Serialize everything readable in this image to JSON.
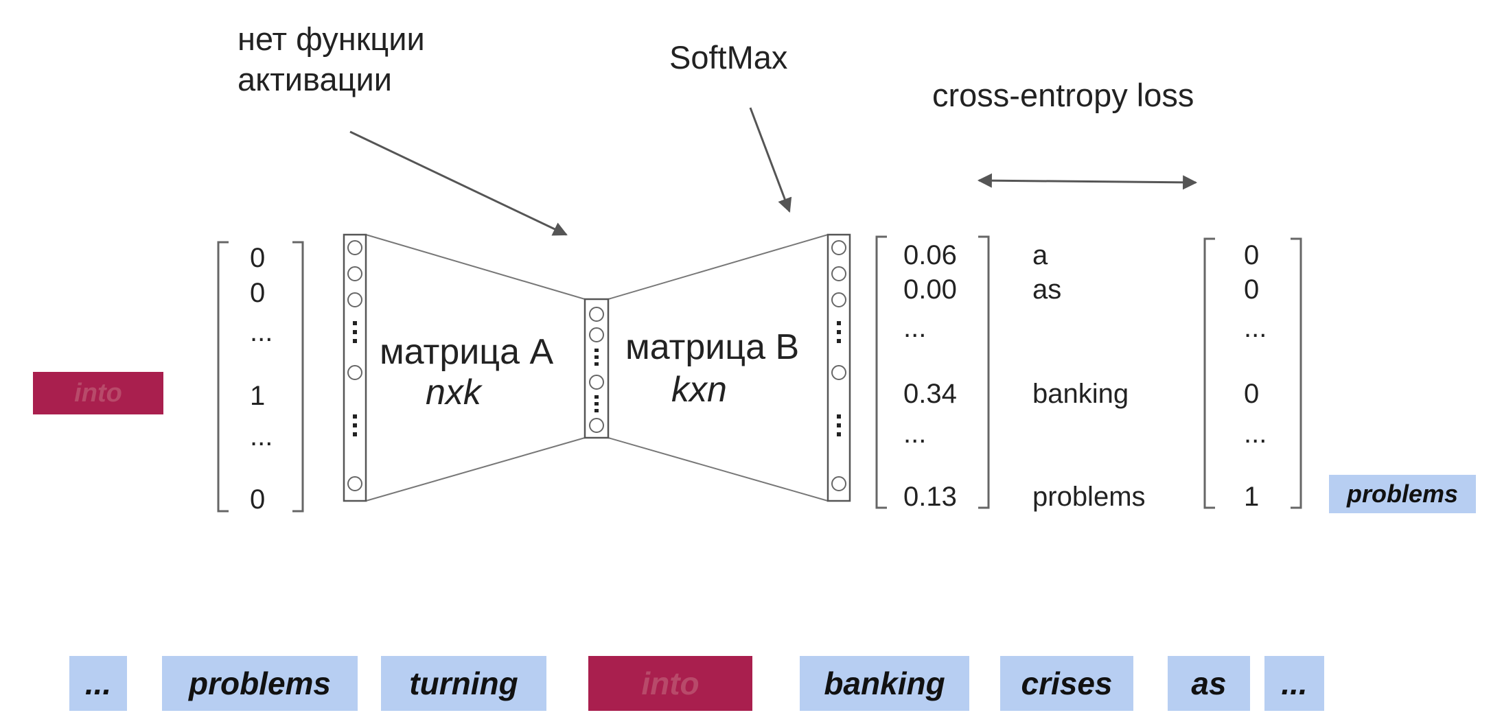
{
  "annotations": {
    "no_activation": "нет функции\nактивации",
    "softmax": "SoftMax",
    "cross_entropy": "cross-entropy loss"
  },
  "matrix_a": {
    "label": "матрица A",
    "dims": "nxk"
  },
  "matrix_b": {
    "label": "матрица B",
    "dims": "kxn"
  },
  "input_word": "into",
  "input_vector": [
    "0",
    "0",
    "...",
    "1",
    "...",
    "0"
  ],
  "output_probs": [
    "0.06",
    "0.00",
    "...",
    "0.34",
    "...",
    "0.13"
  ],
  "vocab_words": [
    "a",
    "as",
    "",
    "banking",
    "",
    "problems"
  ],
  "target_vector": [
    "0",
    "0",
    "...",
    "0",
    "...",
    "1"
  ],
  "target_word": "problems",
  "sentence": [
    "...",
    "problems",
    "turning",
    "into",
    "banking",
    "crises",
    "as",
    "..."
  ],
  "colors": {
    "context_word": "#b7cef2",
    "center_word": "#a91f4e"
  }
}
